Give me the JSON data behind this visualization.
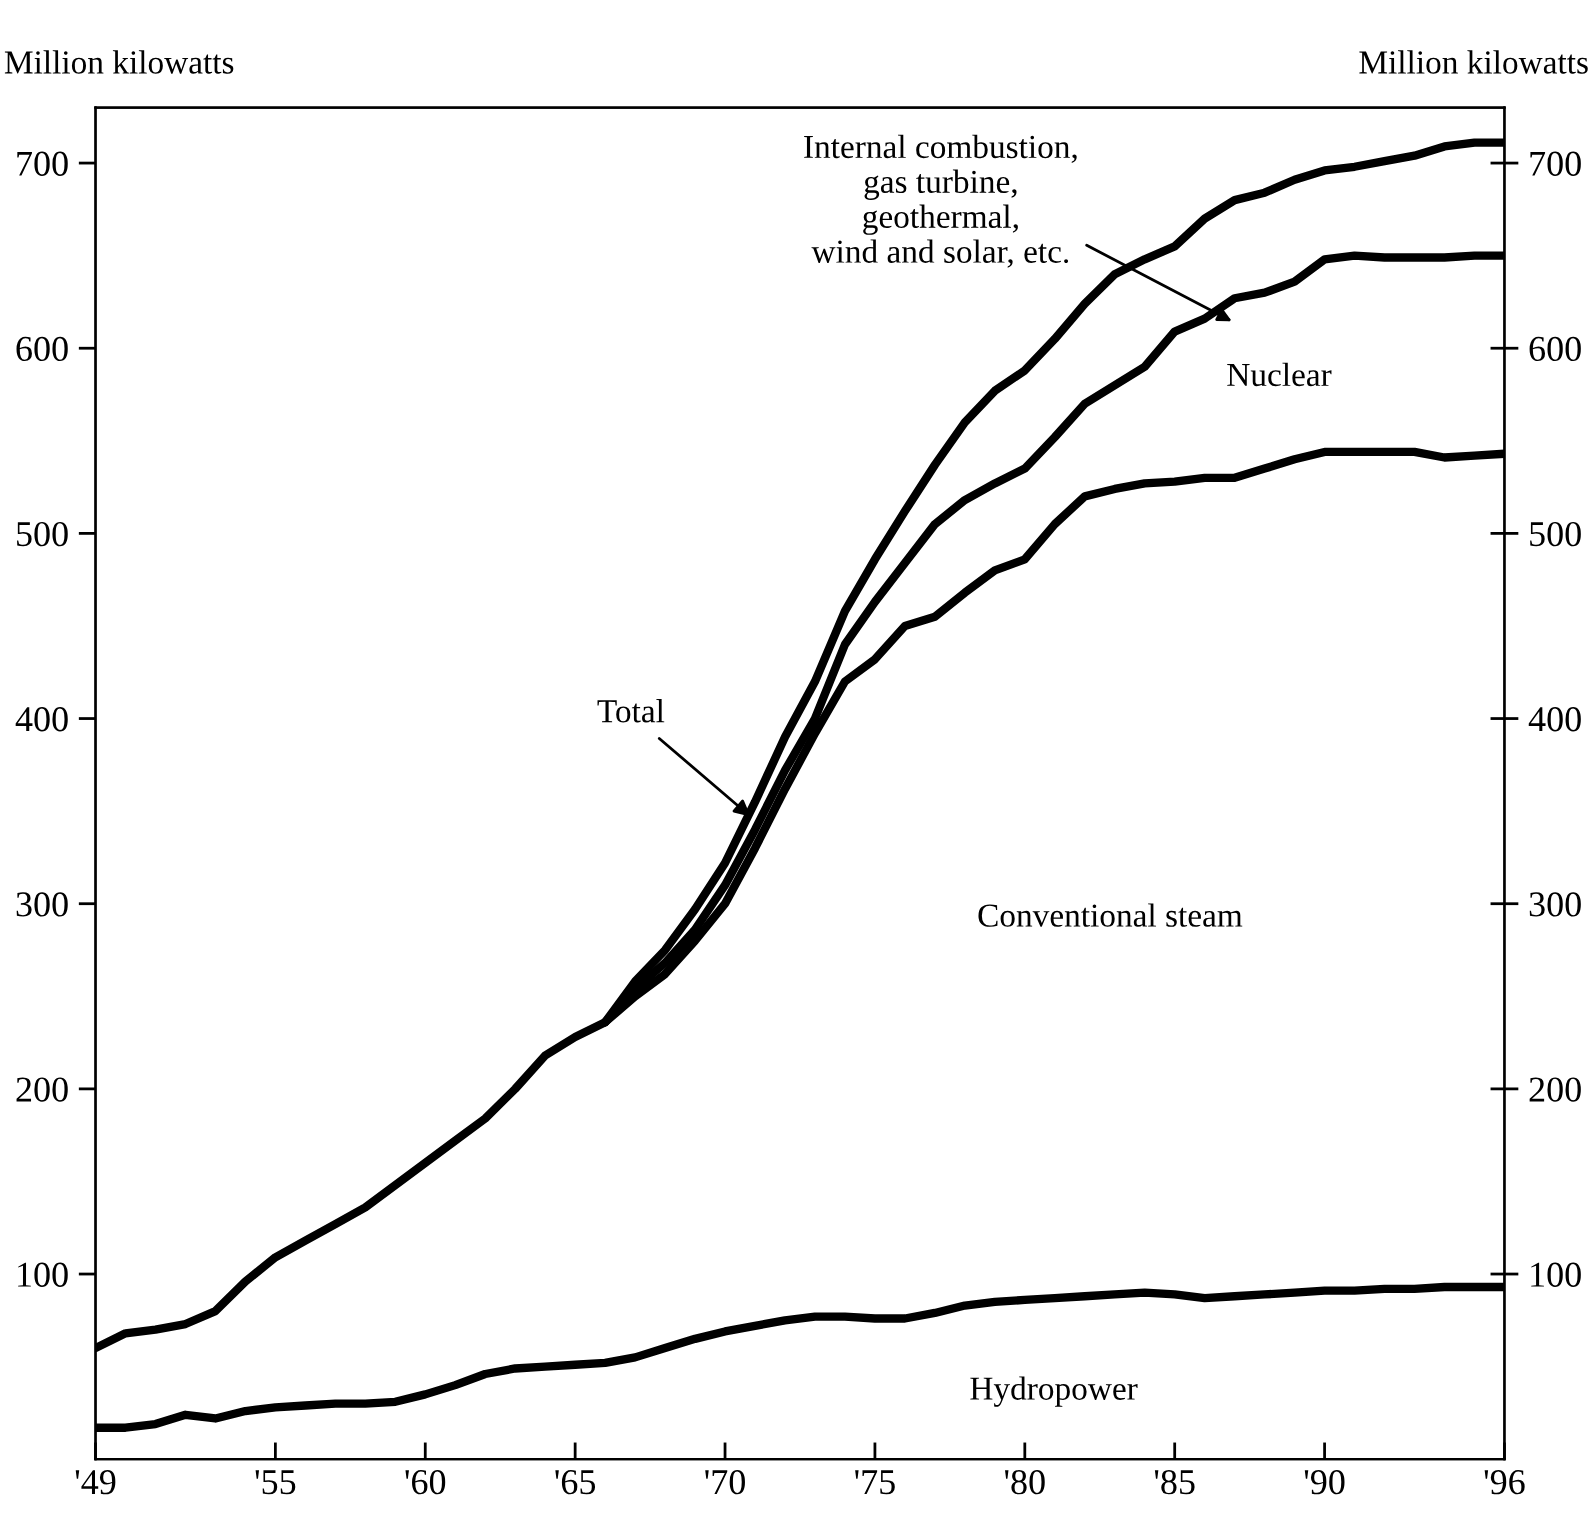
{
  "chart_data": {
    "type": "line",
    "ylabel": "Million kilowatts",
    "y2label": "Million kilowatts",
    "xlim": [
      1949,
      1996
    ],
    "xticks": [
      {
        "value": 1949,
        "label": "'49"
      },
      {
        "value": 1955,
        "label": "'55"
      },
      {
        "value": 1960,
        "label": "'60"
      },
      {
        "value": 1965,
        "label": "'65"
      },
      {
        "value": 1970,
        "label": "'70"
      },
      {
        "value": 1975,
        "label": "'75"
      },
      {
        "value": 1980,
        "label": "'80"
      },
      {
        "value": 1985,
        "label": "'85"
      },
      {
        "value": 1990,
        "label": "'90"
      },
      {
        "value": 1996,
        "label": "'96"
      }
    ],
    "ylim": [
      0,
      730
    ],
    "yticks": [
      100,
      200,
      300,
      400,
      500,
      600,
      700
    ],
    "y2lim": [
      0,
      730
    ],
    "y2ticks": [
      100,
      200,
      300,
      400,
      500,
      600,
      700
    ],
    "grid": false,
    "marker": "none",
    "line_style": "solid",
    "series": [
      {
        "color": "#000000",
        "x": [
          1949,
          1950,
          1951,
          1952,
          1953,
          1954,
          1955,
          1956,
          1957,
          1958,
          1959,
          1960,
          1961,
          1962,
          1963,
          1964,
          1965,
          1966,
          1967,
          1968,
          1969,
          1970,
          1971,
          1972,
          1973,
          1974,
          1975,
          1976,
          1977,
          1978,
          1979,
          1980,
          1981,
          1982,
          1983,
          1984,
          1985,
          1986,
          1987,
          1988,
          1989,
          1990,
          1991,
          1992,
          1993,
          1994,
          1995,
          1996
        ],
        "values": [
          17,
          17,
          19,
          24,
          22,
          26,
          28,
          29,
          30,
          30,
          31,
          35,
          40,
          46,
          49,
          50,
          51,
          52,
          55,
          60,
          65,
          69,
          72,
          75,
          77,
          77,
          76,
          76,
          79,
          83,
          85,
          86,
          87,
          88,
          89,
          90,
          89,
          87,
          88,
          89,
          90,
          91,
          91,
          92,
          92,
          93,
          93,
          93
        ]
      },
      {
        "color": "#000000",
        "x": [
          1966,
          1967,
          1968,
          1969,
          1970,
          1971,
          1972,
          1973,
          1974,
          1975,
          1976,
          1977,
          1978,
          1979,
          1980,
          1981,
          1982,
          1983,
          1984,
          1985,
          1986,
          1987,
          1988,
          1989,
          1990,
          1991,
          1992,
          1993,
          1994,
          1995,
          1996
        ],
        "values": [
          236,
          250,
          262,
          280,
          300,
          330,
          362,
          392,
          420,
          432,
          450,
          455,
          468,
          480,
          486,
          505,
          520,
          524,
          527,
          528,
          530,
          530,
          535,
          540,
          544,
          544,
          544,
          544,
          541,
          542,
          543
        ]
      },
      {
        "color": "#000000",
        "x": [
          1966,
          1967,
          1968,
          1969,
          1970,
          1971,
          1972,
          1973,
          1974,
          1975,
          1976,
          1977,
          1978,
          1979,
          1980,
          1981,
          1982,
          1983,
          1984,
          1985,
          1986,
          1987,
          1988,
          1989,
          1990,
          1991,
          1992,
          1993,
          1994,
          1995,
          1996
        ],
        "values": [
          236,
          254,
          268,
          286,
          310,
          340,
          372,
          400,
          440,
          463,
          484,
          505,
          518,
          527,
          535,
          552,
          570,
          580,
          590,
          609,
          616,
          627,
          630,
          636,
          648,
          650,
          649,
          649,
          649,
          650,
          650
        ]
      },
      {
        "color": "#000000",
        "x": [
          1949,
          1950,
          1951,
          1952,
          1953,
          1954,
          1955,
          1956,
          1957,
          1958,
          1959,
          1960,
          1961,
          1962,
          1963,
          1964,
          1965,
          1966,
          1967,
          1968,
          1969,
          1970,
          1971,
          1972,
          1973,
          1974,
          1975,
          1976,
          1977,
          1978,
          1979,
          1980,
          1981,
          1982,
          1983,
          1984,
          1985,
          1986,
          1987,
          1988,
          1989,
          1990,
          1991,
          1992,
          1993,
          1994,
          1995,
          1996
        ],
        "values": [
          60,
          68,
          70,
          73,
          80,
          96,
          109,
          118,
          127,
          136,
          148,
          160,
          172,
          184,
          200,
          218,
          228,
          236,
          258,
          275,
          297,
          322,
          355,
          390,
          420,
          458,
          486,
          512,
          537,
          560,
          577,
          588,
          605,
          624,
          640,
          648,
          655,
          670,
          680,
          684,
          691,
          696,
          698,
          701,
          704,
          709,
          711,
          711
        ]
      }
    ],
    "annotations": [
      {
        "text": "Internal combustion,\ngas turbine,\ngeothermal,\nwind and solar, etc."
      },
      {
        "text": "Nuclear"
      },
      {
        "text": "Total",
        "x": 1971,
        "y": 345
      },
      {
        "text": "Conventional steam"
      },
      {
        "text": "Hydropower"
      }
    ]
  }
}
